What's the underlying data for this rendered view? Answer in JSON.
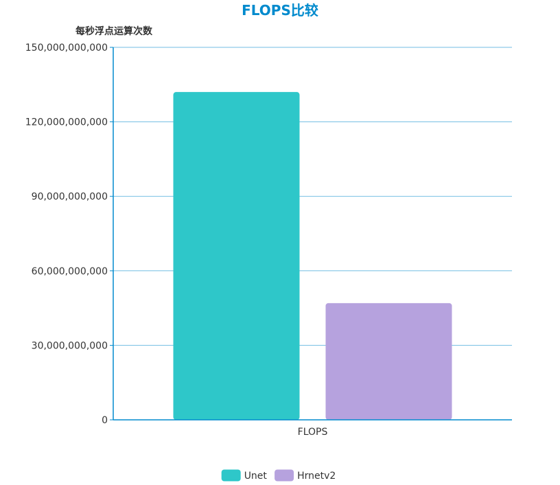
{
  "chart_data": {
    "type": "bar",
    "title": "FLOPS比较",
    "ylabel": "每秒浮点运算次数",
    "xlabel": "",
    "categories": [
      "FLOPS"
    ],
    "series": [
      {
        "name": "Unet",
        "values": [
          132000000000
        ],
        "color": "#2ec7c9"
      },
      {
        "name": "Hrnetv2",
        "values": [
          47000000000
        ],
        "color": "#b6a2de"
      }
    ],
    "ylim": [
      0,
      150000000000
    ],
    "yticks": [
      0,
      30000000000,
      60000000000,
      90000000000,
      120000000000,
      150000000000
    ],
    "ytick_labels": [
      "0",
      "30,000,000,000",
      "60,000,000,000",
      "90,000,000,000",
      "120,000,000,000",
      "150,000,000,000"
    ],
    "grid": true,
    "legend_position": "bottom",
    "colors": {
      "title": "#008acd",
      "axis": "#008acd",
      "grid": "#aaaaaa"
    }
  }
}
